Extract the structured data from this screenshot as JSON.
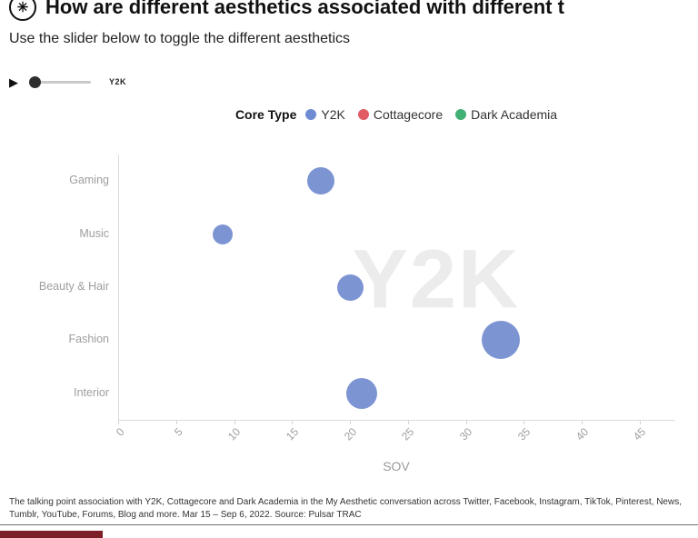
{
  "header": {
    "title": "How are different aesthetics associated with different t",
    "logo_glyph": "✳",
    "subtitle": "Use the slider below to toggle the different aesthetics"
  },
  "slider": {
    "play_glyph": "▶",
    "label": "Y2K"
  },
  "legend": {
    "title": "Core Type",
    "items": [
      {
        "label": "Y2K",
        "color": "#6e8bd4"
      },
      {
        "label": "Cottagecore",
        "color": "#e15b64"
      },
      {
        "label": "Dark Academia",
        "color": "#41b074"
      }
    ]
  },
  "chart_data": {
    "type": "scatter",
    "watermark": "Y2K",
    "watermark_color": "#ececec",
    "xlabel": "SOV",
    "xlim": [
      0,
      48
    ],
    "x_ticks": [
      0,
      5,
      10,
      15,
      20,
      25,
      30,
      35,
      40,
      45
    ],
    "categories": [
      "Gaming",
      "Music",
      "Beauty & Hair",
      "Fashion",
      "Interior"
    ],
    "series": [
      {
        "name": "Y2K",
        "color": "#7d94d3",
        "points": [
          {
            "category": "Gaming",
            "x": 17.5,
            "size": 30
          },
          {
            "category": "Music",
            "x": 9,
            "size": 22
          },
          {
            "category": "Beauty & Hair",
            "x": 20,
            "size": 29
          },
          {
            "category": "Fashion",
            "x": 33,
            "size": 42
          },
          {
            "category": "Interior",
            "x": 21,
            "size": 34
          }
        ]
      }
    ]
  },
  "footer": {
    "caption": "The talking point association with Y2K, Cottagecore and Dark Academia in the My Aesthetic conversation across Twitter, Facebook, Instagram, TikTok, Pinterest, News, Tumblr, YouTube, Forums, Blog and more. Mar 15 – Sep 6, 2022. Source: Pulsar TRAC",
    "brand_bar_color": "#7e1e26"
  }
}
